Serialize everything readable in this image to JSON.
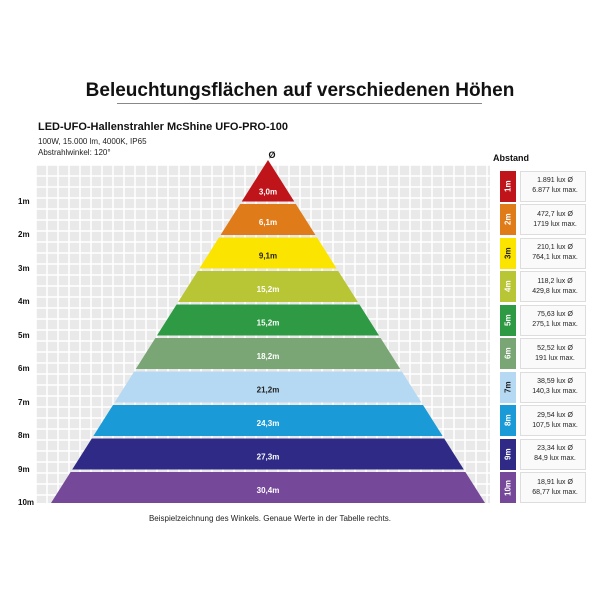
{
  "title": "Beleuchtungsflächen auf verschiedenen Höhen",
  "product": "LED-UFO-Hallenstrahler McShine UFO-PRO-100",
  "specs": [
    "100W, 15.000 lm, 4000K, IP65",
    "Abstrahlwinkel: 120°"
  ],
  "diameter_header": "Ø",
  "distance_header": "Abstand",
  "caption": "Beispielzeichnung des Winkels. Genaue Werte in der Tabelle rechts.",
  "levels": [
    {
      "height": "1m",
      "diameter": "3,0m",
      "color": "#c0141b",
      "text_color": "#ffffff",
      "lux_avg": "1.891 lux Ø",
      "lux_max": "6.877 lux max."
    },
    {
      "height": "2m",
      "diameter": "6,1m",
      "color": "#e07b1a",
      "text_color": "#ffffff",
      "lux_avg": "472,7 lux Ø",
      "lux_max": "1719 lux max."
    },
    {
      "height": "3m",
      "diameter": "9,1m",
      "color": "#fbe400",
      "text_color": "#222222",
      "lux_avg": "210,1 lux Ø",
      "lux_max": "764,1 lux max."
    },
    {
      "height": "4m",
      "diameter": "15,2m",
      "color": "#b8c534",
      "text_color": "#ffffff",
      "lux_avg": "118,2 lux Ø",
      "lux_max": "429,8 lux max."
    },
    {
      "height": "5m",
      "diameter": "15,2m",
      "color": "#2e9a44",
      "text_color": "#ffffff",
      "lux_avg": "75,63 lux Ø",
      "lux_max": "275,1 lux max."
    },
    {
      "height": "6m",
      "diameter": "18,2m",
      "color": "#7aa675",
      "text_color": "#ffffff",
      "lux_avg": "52,52 lux Ø",
      "lux_max": "191 lux max."
    },
    {
      "height": "7m",
      "diameter": "21,2m",
      "color": "#b5d9f3",
      "text_color": "#222222",
      "lux_avg": "38,59 lux Ø",
      "lux_max": "140,3 lux max."
    },
    {
      "height": "8m",
      "diameter": "24,3m",
      "color": "#1a9ad6",
      "text_color": "#ffffff",
      "lux_avg": "29,54 lux Ø",
      "lux_max": "107,5 lux max."
    },
    {
      "height": "9m",
      "diameter": "27,3m",
      "color": "#2e2a86",
      "text_color": "#ffffff",
      "lux_avg": "23,34 lux Ø",
      "lux_max": "84,9 lux max."
    },
    {
      "height": "10m",
      "diameter": "30,4m",
      "color": "#76489a",
      "text_color": "#ffffff",
      "lux_avg": "18,91 lux Ø",
      "lux_max": "68,77 lux max."
    }
  ]
}
